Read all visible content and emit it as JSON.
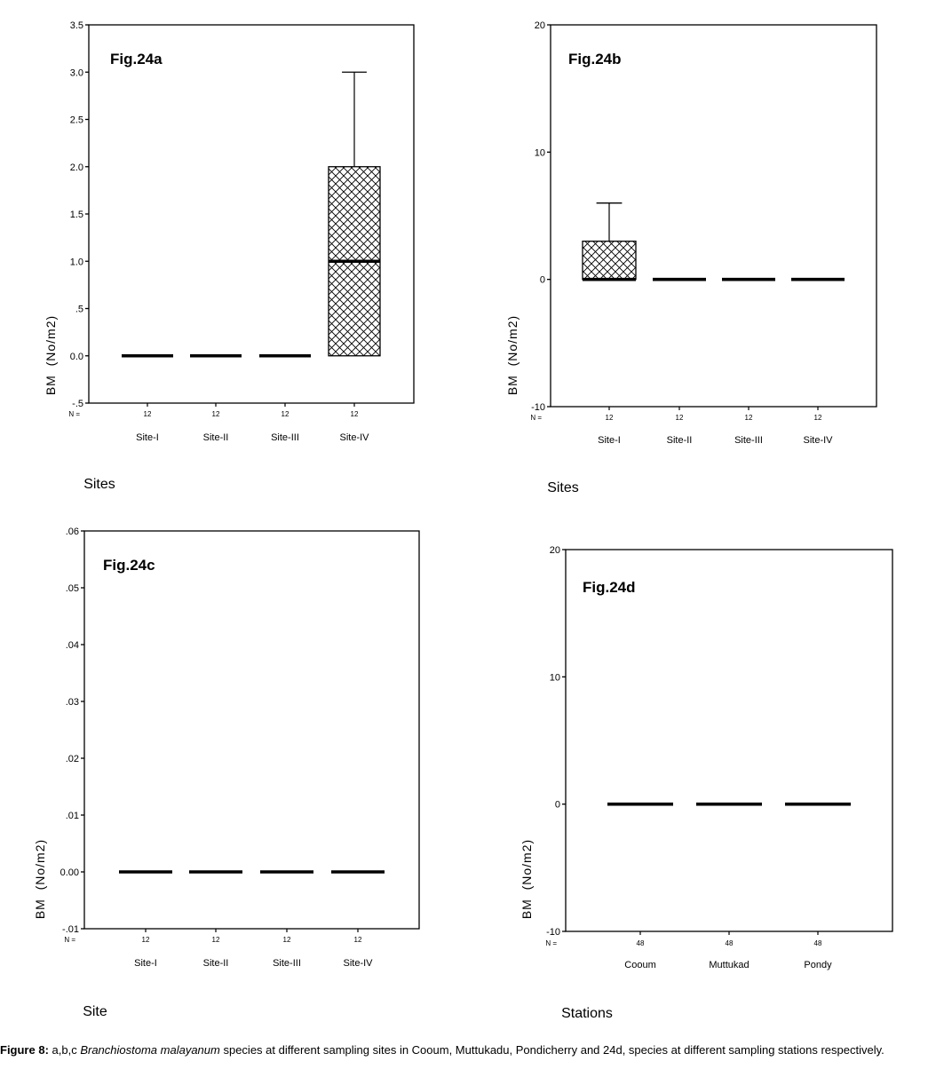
{
  "chart_data": [
    {
      "type": "boxplot",
      "panel_label": "Fig.24a",
      "ylabel": "BM  (No/m2)",
      "xlabel": "Sites",
      "n_label": "N =",
      "yticks": [
        "-.5",
        "0.0",
        ".5",
        "1.0",
        "1.5",
        "2.0",
        "2.5",
        "3.0",
        "3.5"
      ],
      "ylim": [
        -0.5,
        3.5
      ],
      "categories": [
        "Site-I",
        "Site-II",
        "Site-III",
        "Site-IV"
      ],
      "n": [
        "12",
        "12",
        "12",
        "12"
      ],
      "boxes": [
        {
          "q1": 0,
          "median": 0,
          "q3": 0,
          "whisker_low": 0,
          "whisker_high": 0
        },
        {
          "q1": 0,
          "median": 0,
          "q3": 0,
          "whisker_low": 0,
          "whisker_high": 0
        },
        {
          "q1": 0,
          "median": 0,
          "q3": 0,
          "whisker_low": 0,
          "whisker_high": 0
        },
        {
          "q1": 0,
          "median": 1.0,
          "q3": 2.0,
          "whisker_low": 0,
          "whisker_high": 3.0
        }
      ]
    },
    {
      "type": "boxplot",
      "panel_label": "Fig.24b",
      "ylabel": "BM  (No/m2)",
      "xlabel": "Sites",
      "n_label": "N =",
      "yticks": [
        "-10",
        "0",
        "10",
        "20"
      ],
      "ylim": [
        -10,
        20
      ],
      "categories": [
        "Site-I",
        "Site-II",
        "Site-III",
        "Site-IV"
      ],
      "n": [
        "12",
        "12",
        "12",
        "12"
      ],
      "boxes": [
        {
          "q1": 0,
          "median": 0,
          "q3": 3,
          "whisker_low": 0,
          "whisker_high": 6
        },
        {
          "q1": 0,
          "median": 0,
          "q3": 0,
          "whisker_low": 0,
          "whisker_high": 0
        },
        {
          "q1": 0,
          "median": 0,
          "q3": 0,
          "whisker_low": 0,
          "whisker_high": 0
        },
        {
          "q1": 0,
          "median": 0,
          "q3": 0,
          "whisker_low": 0,
          "whisker_high": 0
        }
      ]
    },
    {
      "type": "boxplot",
      "panel_label": "Fig.24c",
      "ylabel": "BM  (No/m2)",
      "xlabel": "Site",
      "n_label": "N =",
      "yticks": [
        "-.01",
        "0.00",
        ".01",
        ".02",
        ".03",
        ".04",
        ".05",
        ".06"
      ],
      "ylim": [
        -0.01,
        0.06
      ],
      "categories": [
        "Site-I",
        "Site-II",
        "Site-III",
        "Site-IV"
      ],
      "n": [
        "12",
        "12",
        "12",
        "12"
      ],
      "boxes": [
        {
          "q1": 0,
          "median": 0,
          "q3": 0,
          "whisker_low": 0,
          "whisker_high": 0
        },
        {
          "q1": 0,
          "median": 0,
          "q3": 0,
          "whisker_low": 0,
          "whisker_high": 0
        },
        {
          "q1": 0,
          "median": 0,
          "q3": 0,
          "whisker_low": 0,
          "whisker_high": 0
        },
        {
          "q1": 0,
          "median": 0,
          "q3": 0,
          "whisker_low": 0,
          "whisker_high": 0
        }
      ]
    },
    {
      "type": "boxplot",
      "panel_label": "Fig.24d",
      "ylabel": "BM  (No/m2)",
      "xlabel": "Stations",
      "n_label": "N =",
      "yticks": [
        "-10",
        "0",
        "10",
        "20"
      ],
      "ylim": [
        -10,
        20
      ],
      "categories": [
        "Cooum",
        "Muttukad",
        "Pondy"
      ],
      "n": [
        "48",
        "48",
        "48"
      ],
      "boxes": [
        {
          "q1": 0,
          "median": 0,
          "q3": 0,
          "whisker_low": 0,
          "whisker_high": 0
        },
        {
          "q1": 0,
          "median": 0,
          "q3": 0,
          "whisker_low": 0,
          "whisker_high": 0
        },
        {
          "q1": 0,
          "median": 0,
          "q3": 0,
          "whisker_low": 0,
          "whisker_high": 0
        }
      ]
    }
  ],
  "caption": {
    "label": "Figure 8:",
    "text_before": " a,b,c ",
    "species": "Branchiostoma malayanum",
    "text_after": " species  at different sampling sites in Cooum, Muttukadu, Pondicherry and  24d, species at different sampling stations respectively."
  }
}
